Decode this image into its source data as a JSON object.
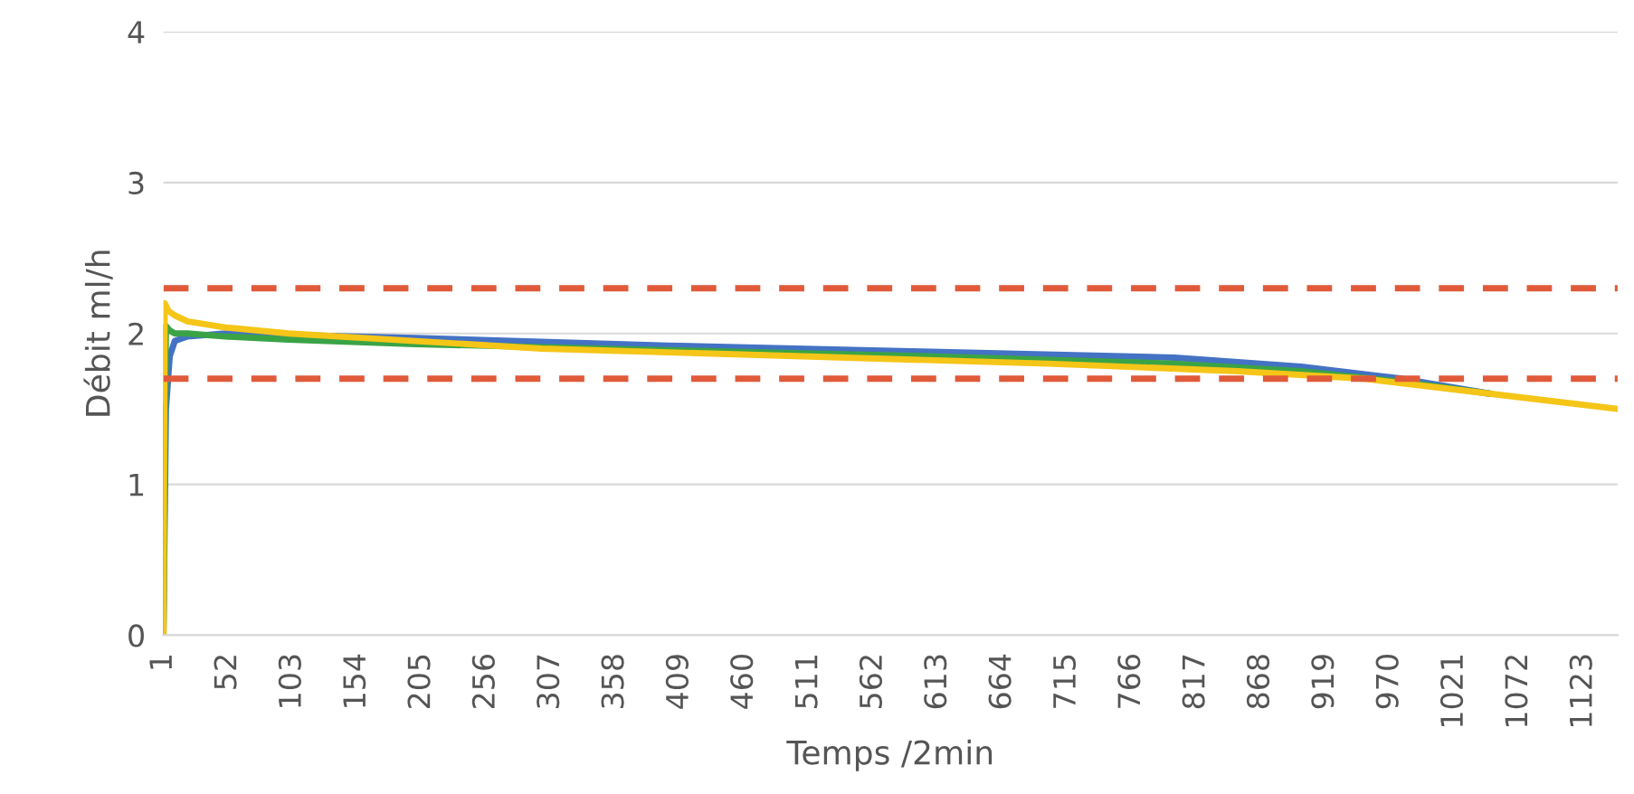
{
  "chart_data": {
    "type": "line",
    "xlabel": "Temps /2min",
    "ylabel": "Débit ml/h",
    "xlim": [
      1,
      1150
    ],
    "xticks": [
      1,
      52,
      103,
      154,
      205,
      256,
      307,
      358,
      409,
      460,
      511,
      562,
      613,
      664,
      715,
      766,
      817,
      868,
      919,
      970,
      1021,
      1072,
      1123
    ],
    "ylim": [
      0,
      4
    ],
    "yticks": [
      0,
      1,
      2,
      3,
      4
    ],
    "grid": "y",
    "line_style": "solid",
    "marker": "none",
    "series": [
      {
        "color": "#4472c4",
        "x": [
          1,
          3,
          6,
          10,
          20,
          50,
          100,
          200,
          400,
          600,
          800,
          900,
          980,
          1050
        ],
        "values": [
          0,
          1.5,
          1.85,
          1.95,
          1.98,
          2.0,
          1.99,
          1.97,
          1.92,
          1.88,
          1.84,
          1.78,
          1.7,
          1.6
        ]
      },
      {
        "color": "#3aa346",
        "x": [
          1,
          3,
          6,
          10,
          20,
          50,
          100,
          200,
          400,
          600,
          800,
          900,
          980,
          1050
        ],
        "values": [
          0,
          2.05,
          2.02,
          2.0,
          2.0,
          1.98,
          1.96,
          1.93,
          1.89,
          1.85,
          1.8,
          1.75,
          1.68,
          1.6
        ]
      },
      {
        "color": "#f5c518",
        "x": [
          1,
          2,
          5,
          10,
          20,
          50,
          100,
          200,
          300,
          500,
          700,
          850,
          950,
          1050,
          1150
        ],
        "values": [
          0,
          2.2,
          2.15,
          2.12,
          2.08,
          2.04,
          2.0,
          1.95,
          1.9,
          1.85,
          1.8,
          1.75,
          1.7,
          1.6,
          1.5
        ]
      }
    ],
    "ref_lines": [
      {
        "axis": "y",
        "value": 2.3,
        "color": "#e05a3a",
        "line_style": "dashed"
      },
      {
        "axis": "y",
        "value": 1.7,
        "color": "#e05a3a",
        "line_style": "dashed"
      }
    ]
  }
}
